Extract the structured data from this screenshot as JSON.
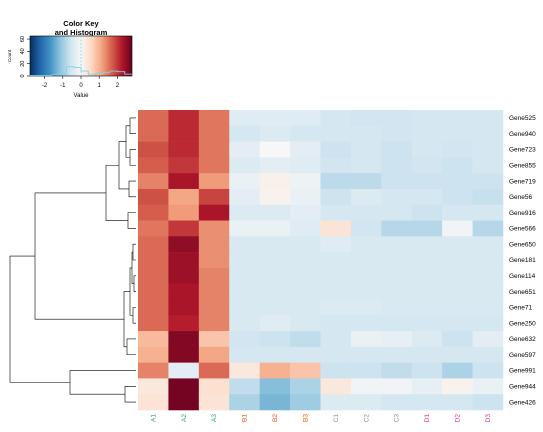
{
  "chart_data": {
    "type": "heatmap",
    "color_key": {
      "title_line1": "Color Key",
      "title_line2": "and Histogram",
      "xlabel": "Value",
      "ylabel": "Count",
      "x_ticks": [
        "-2",
        "-1",
        "0",
        "1",
        "2"
      ],
      "x_tick_values": [
        -2,
        -1,
        0,
        1,
        2
      ],
      "y_ticks": [
        "0",
        "20",
        "40",
        "60"
      ],
      "y_tick_values": [
        0,
        20,
        40,
        60
      ],
      "range": [
        -2.8,
        2.8
      ],
      "count_range": [
        0,
        65
      ],
      "histogram_bins": [
        -2.6,
        -2.2,
        -1.8,
        -1.4,
        -1.0,
        -0.6,
        -0.2,
        0.2,
        0.6,
        1.0,
        1.4,
        1.8,
        2.2,
        2.6
      ],
      "histogram_counts": [
        1,
        1,
        1,
        2,
        4,
        15,
        14,
        8,
        3,
        4,
        6,
        8,
        7,
        3
      ],
      "colors": [
        "#053061",
        "#2166ac",
        "#4393c3",
        "#92c5de",
        "#d1e5f0",
        "#f7f7f7",
        "#fddbc7",
        "#f4a582",
        "#d6604d",
        "#b2182b",
        "#67001f"
      ]
    },
    "columns": [
      "A1",
      "A2",
      "A3",
      "B1",
      "B2",
      "B3",
      "C1",
      "C2",
      "C3",
      "D1",
      "D2",
      "D3"
    ],
    "column_colors": {
      "A": "#2ca25f",
      "B": "#e6550d",
      "C": "#8c8c8c",
      "D": "#e7298a"
    },
    "rows": [
      "Gene525",
      "Gene940",
      "Gene723",
      "Gene855",
      "Gene719",
      "Gene56",
      "Gene916",
      "Gene566",
      "Gene650",
      "Gene181",
      "Gene114",
      "Gene651",
      "Gene71",
      "Gene250",
      "Gene632",
      "Gene597",
      "Gene991",
      "Gene944",
      "Gene426"
    ],
    "values": [
      [
        1.6,
        2.1,
        1.5,
        -0.35,
        -0.35,
        -0.35,
        -0.5,
        -0.55,
        -0.55,
        -0.5,
        -0.5,
        -0.5
      ],
      [
        1.6,
        2.1,
        1.5,
        -0.5,
        -0.4,
        -0.5,
        -0.5,
        -0.5,
        -0.55,
        -0.5,
        -0.5,
        -0.5
      ],
      [
        1.8,
        2.1,
        1.5,
        -0.3,
        0.0,
        -0.3,
        -0.6,
        -0.5,
        -0.6,
        -0.5,
        -0.55,
        -0.5
      ],
      [
        1.7,
        2.0,
        1.5,
        -0.4,
        -0.3,
        -0.35,
        -0.55,
        -0.5,
        -0.6,
        -0.55,
        -0.6,
        -0.5
      ],
      [
        1.4,
        2.3,
        1.2,
        -0.2,
        0.15,
        -0.15,
        -0.75,
        -0.75,
        -0.6,
        -0.6,
        -0.6,
        -0.6
      ],
      [
        1.8,
        1.1,
        1.9,
        -0.3,
        0.1,
        -0.2,
        -0.6,
        -0.4,
        -0.5,
        -0.5,
        -0.6,
        -0.65
      ],
      [
        1.7,
        1.2,
        2.3,
        -0.4,
        -0.4,
        -0.3,
        -0.5,
        -0.5,
        -0.5,
        -0.6,
        -0.5,
        -0.5
      ],
      [
        1.5,
        2.0,
        1.3,
        -0.2,
        -0.2,
        -0.35,
        0.4,
        -0.55,
        -0.8,
        -0.8,
        -0.1,
        -0.8
      ],
      [
        1.6,
        2.5,
        1.3,
        -0.45,
        -0.45,
        -0.45,
        -0.35,
        -0.45,
        -0.45,
        -0.45,
        -0.45,
        -0.45
      ],
      [
        1.6,
        2.4,
        1.3,
        -0.45,
        -0.45,
        -0.45,
        -0.45,
        -0.45,
        -0.45,
        -0.45,
        -0.45,
        -0.45
      ],
      [
        1.6,
        2.4,
        1.4,
        -0.45,
        -0.45,
        -0.45,
        -0.45,
        -0.45,
        -0.45,
        -0.45,
        -0.45,
        -0.45
      ],
      [
        1.6,
        2.3,
        1.4,
        -0.45,
        -0.45,
        -0.45,
        -0.45,
        -0.45,
        -0.45,
        -0.45,
        -0.45,
        -0.45
      ],
      [
        1.6,
        2.3,
        1.4,
        -0.45,
        -0.45,
        -0.45,
        -0.4,
        -0.4,
        -0.45,
        -0.45,
        -0.45,
        -0.45
      ],
      [
        1.6,
        2.2,
        1.4,
        -0.45,
        -0.35,
        -0.45,
        -0.5,
        -0.5,
        -0.5,
        -0.5,
        -0.5,
        -0.5
      ],
      [
        0.9,
        2.6,
        0.8,
        -0.55,
        -0.6,
        -0.7,
        -0.5,
        -0.2,
        -0.25,
        -0.4,
        -0.6,
        -0.3
      ],
      [
        1.0,
        2.6,
        1.1,
        -0.5,
        -0.5,
        -0.5,
        -0.5,
        -0.5,
        -0.5,
        -0.5,
        -0.5,
        -0.5
      ],
      [
        1.4,
        -0.3,
        1.6,
        0.3,
        1.0,
        0.8,
        -0.6,
        -0.6,
        -0.7,
        -0.6,
        -0.9,
        -0.6
      ],
      [
        0.3,
        2.7,
        0.45,
        -0.7,
        -1.2,
        -0.9,
        0.3,
        -0.1,
        -0.1,
        -0.25,
        0.1,
        -0.2
      ],
      [
        0.4,
        2.7,
        0.4,
        -0.9,
        -1.3,
        -1.0,
        -0.4,
        -0.4,
        -0.5,
        -0.5,
        -0.5,
        -0.6
      ]
    ]
  }
}
